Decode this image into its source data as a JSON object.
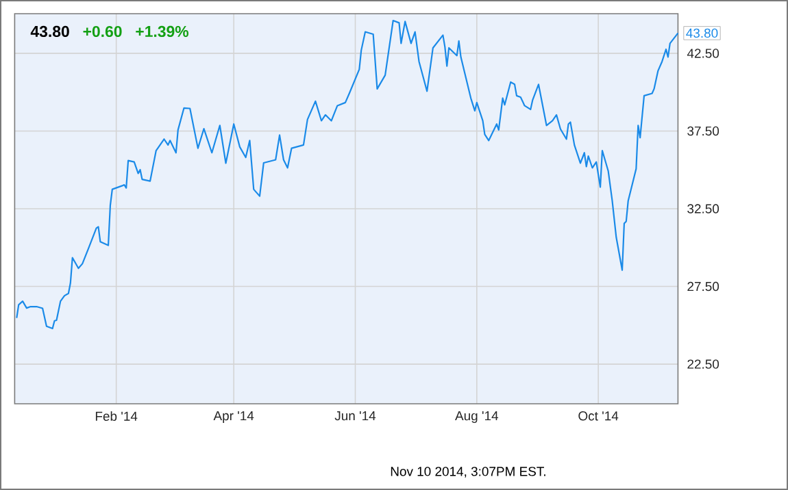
{
  "chart_data": {
    "type": "line",
    "color": "#1a8ae8",
    "grid": true,
    "xlim": [
      "2013-12-12",
      "2014-11-10"
    ],
    "ylim": [
      19.95,
      45.05
    ],
    "xticks": [
      {
        "value": "2014-02-01",
        "label": "Feb '14"
      },
      {
        "value": "2014-04-01",
        "label": "Apr '14"
      },
      {
        "value": "2014-06-01",
        "label": "Jun '14"
      },
      {
        "value": "2014-08-01",
        "label": "Aug '14"
      },
      {
        "value": "2014-10-01",
        "label": "Oct '14"
      }
    ],
    "yticks": [
      {
        "value": 22.5,
        "label": "22.50"
      },
      {
        "value": 27.5,
        "label": "27.50"
      },
      {
        "value": 32.5,
        "label": "32.50"
      },
      {
        "value": 37.5,
        "label": "37.50"
      },
      {
        "value": 42.5,
        "label": "42.50"
      }
    ],
    "x": [
      "2013-12-13",
      "2013-12-14",
      "2013-12-16",
      "2013-12-18",
      "2013-12-20",
      "2013-12-23",
      "2013-12-26",
      "2013-12-28",
      "2013-12-31",
      "2014-01-01",
      "2014-01-02",
      "2014-01-04",
      "2014-01-06",
      "2014-01-08",
      "2014-01-09",
      "2014-01-10",
      "2014-01-13",
      "2014-01-15",
      "2014-01-18",
      "2014-01-22",
      "2014-01-23",
      "2014-01-24",
      "2014-01-28",
      "2014-01-29",
      "2014-01-30",
      "2014-02-04",
      "2014-02-05",
      "2014-02-06",
      "2014-02-07",
      "2014-02-10",
      "2014-02-12",
      "2014-02-13",
      "2014-02-14",
      "2014-02-18",
      "2014-02-21",
      "2014-02-25",
      "2014-02-27",
      "2014-02-28",
      "2014-03-03",
      "2014-03-04",
      "2014-03-07",
      "2014-03-10",
      "2014-03-14",
      "2014-03-17",
      "2014-03-21",
      "2014-03-25",
      "2014-03-28",
      "2014-04-01",
      "2014-04-04",
      "2014-04-07",
      "2014-04-09",
      "2014-04-11",
      "2014-04-14",
      "2014-04-16",
      "2014-04-22",
      "2014-04-24",
      "2014-04-26",
      "2014-04-28",
      "2014-04-30",
      "2014-05-06",
      "2014-05-08",
      "2014-05-12",
      "2014-05-15",
      "2014-05-17",
      "2014-05-20",
      "2014-05-23",
      "2014-05-27",
      "2014-05-29",
      "2014-06-03",
      "2014-06-04",
      "2014-06-06",
      "2014-06-10",
      "2014-06-12",
      "2014-06-16",
      "2014-06-20",
      "2014-06-23",
      "2014-06-24",
      "2014-06-26",
      "2014-06-29",
      "2014-07-01",
      "2014-07-03",
      "2014-07-07",
      "2014-07-10",
      "2014-07-15",
      "2014-07-16",
      "2014-07-17",
      "2014-07-18",
      "2014-07-22",
      "2014-07-23",
      "2014-07-24",
      "2014-07-29",
      "2014-07-31",
      "2014-08-01",
      "2014-08-04",
      "2014-08-05",
      "2014-08-07",
      "2014-08-11",
      "2014-08-12",
      "2014-08-14",
      "2014-08-15",
      "2014-08-18",
      "2014-08-20",
      "2014-08-21",
      "2014-08-23",
      "2014-08-25",
      "2014-08-28",
      "2014-08-29",
      "2014-09-01",
      "2014-09-05",
      "2014-09-08",
      "2014-09-10",
      "2014-09-12",
      "2014-09-15",
      "2014-09-16",
      "2014-09-17",
      "2014-09-19",
      "2014-09-22",
      "2014-09-24",
      "2014-09-25",
      "2014-09-26",
      "2014-09-28",
      "2014-09-30",
      "2014-10-02",
      "2014-10-03",
      "2014-10-06",
      "2014-10-08",
      "2014-10-10",
      "2014-10-13",
      "2014-10-14",
      "2014-10-15",
      "2014-10-16",
      "2014-10-20",
      "2014-10-21",
      "2014-10-22",
      "2014-10-24",
      "2014-10-28",
      "2014-10-29",
      "2014-10-31",
      "2014-11-02",
      "2014-11-04",
      "2014-11-05",
      "2014-11-06",
      "2014-11-10"
    ],
    "values": [
      25.47,
      26.32,
      26.55,
      26.11,
      26.2,
      26.2,
      26.09,
      24.94,
      24.79,
      25.29,
      25.32,
      26.55,
      26.9,
      27.05,
      27.72,
      29.35,
      28.67,
      28.96,
      29.93,
      31.25,
      31.34,
      30.37,
      30.14,
      32.72,
      33.75,
      33.98,
      34.04,
      33.84,
      35.6,
      35.51,
      34.77,
      35.01,
      34.39,
      34.28,
      36.24,
      36.98,
      36.6,
      36.89,
      36.1,
      37.57,
      38.98,
      38.95,
      36.39,
      37.65,
      36.1,
      37.86,
      35.43,
      37.95,
      36.48,
      35.8,
      36.89,
      33.75,
      33.31,
      35.45,
      35.65,
      37.24,
      35.65,
      35.13,
      36.39,
      36.6,
      38.24,
      39.42,
      38.16,
      38.54,
      38.16,
      39.13,
      39.33,
      39.92,
      41.47,
      42.7,
      43.88,
      43.73,
      40.21,
      41.09,
      44.61,
      44.46,
      43.14,
      44.55,
      43.14,
      43.88,
      41.97,
      40.06,
      42.85,
      43.67,
      42.91,
      41.68,
      42.85,
      42.35,
      43.29,
      42.26,
      39.62,
      38.8,
      39.33,
      38.16,
      37.28,
      36.89,
      37.95,
      37.57,
      39.62,
      39.18,
      40.65,
      40.5,
      39.77,
      39.68,
      39.13,
      38.89,
      39.48,
      40.5,
      37.86,
      38.16,
      38.54,
      37.63,
      36.98,
      37.95,
      38.07,
      36.6,
      35.43,
      36.1,
      35.21,
      35.89,
      35.13,
      35.51,
      33.89,
      36.24,
      34.92,
      33.01,
      30.67,
      28.55,
      31.55,
      31.69,
      33.01,
      35.07,
      37.86,
      37.07,
      39.77,
      39.92,
      40.21,
      41.38,
      41.97,
      42.76,
      42.26,
      43.14,
      43.8
    ],
    "annotations": [
      "43.80",
      "+0.60",
      "+1.39%",
      "Nov 10 2014, 3:07PM EST.",
      {
        "text": "43.80",
        "x": "2014-11-10",
        "y": 43.8
      }
    ]
  }
}
